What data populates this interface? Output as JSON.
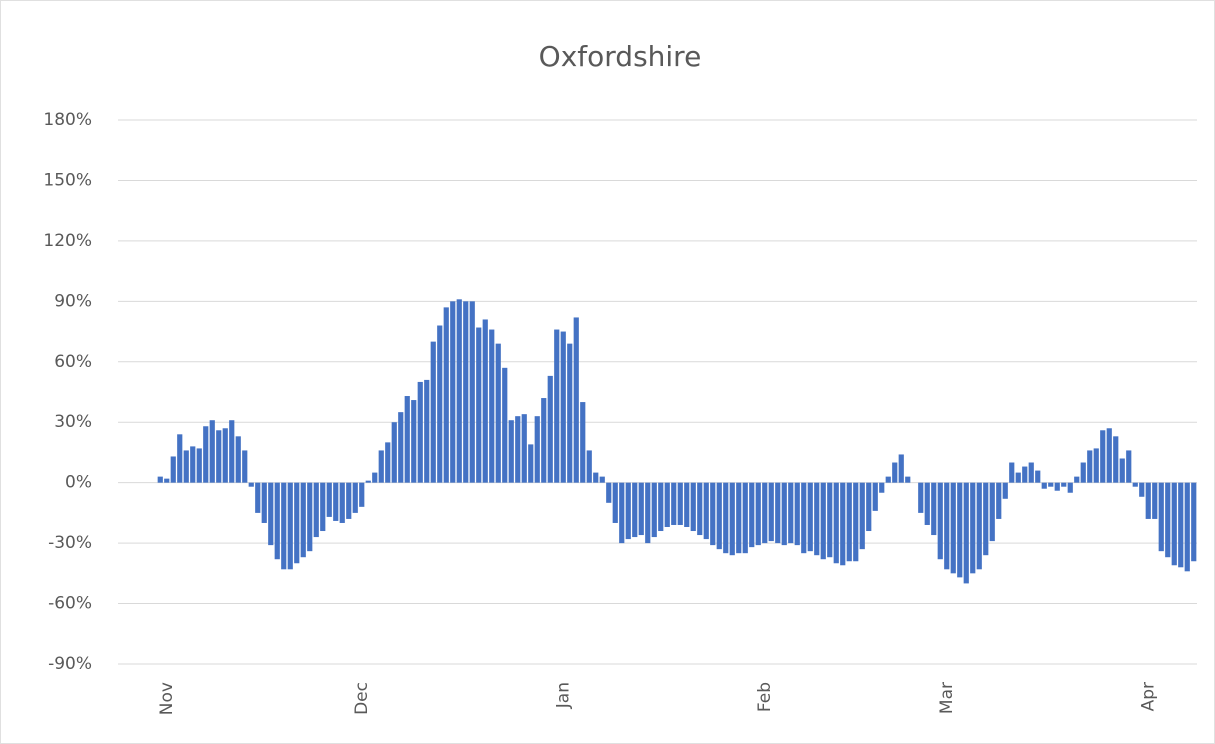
{
  "chart_data": {
    "type": "bar",
    "title": "Oxfordshire",
    "categories": [
      null,
      null,
      null,
      null,
      null,
      null,
      null,
      "Nov",
      null,
      null,
      null,
      null,
      null,
      null,
      null,
      null,
      null,
      null,
      null,
      null,
      null,
      null,
      null,
      null,
      null,
      null,
      null,
      null,
      null,
      null,
      null,
      null,
      null,
      null,
      null,
      null,
      null,
      "Dec",
      null,
      null,
      null,
      null,
      null,
      null,
      null,
      null,
      null,
      null,
      null,
      null,
      null,
      null,
      null,
      null,
      null,
      null,
      null,
      null,
      null,
      null,
      null,
      null,
      null,
      null,
      null,
      null,
      null,
      null,
      "Jan",
      null,
      null,
      null,
      null,
      null,
      null,
      null,
      null,
      null,
      null,
      null,
      null,
      null,
      null,
      null,
      null,
      null,
      null,
      null,
      null,
      null,
      null,
      null,
      null,
      null,
      null,
      null,
      null,
      null,
      null,
      "Feb",
      null,
      null,
      null,
      null,
      null,
      null,
      null,
      null,
      null,
      null,
      null,
      null,
      null,
      null,
      null,
      null,
      null,
      null,
      null,
      null,
      null,
      null,
      null,
      null,
      null,
      null,
      null,
      "Mar",
      null,
      null,
      null,
      null,
      null,
      null,
      null,
      null,
      null,
      null,
      null,
      null,
      null,
      null,
      null,
      null,
      null,
      null,
      null,
      null,
      null,
      null,
      null,
      null,
      null,
      null,
      null,
      null,
      null,
      null,
      "Apr",
      null,
      null,
      null,
      null,
      null,
      null,
      null
    ],
    "values": [
      0,
      0,
      0,
      0,
      0,
      0,
      3,
      2,
      13,
      24,
      16,
      18,
      17,
      28,
      31,
      26,
      27,
      31,
      23,
      16,
      -2,
      -15,
      -20,
      -31,
      -38,
      -43,
      -43,
      -40,
      -37,
      -34,
      -27,
      -24,
      -17,
      -19,
      -20,
      -18,
      -15,
      -12,
      1,
      5,
      16,
      20,
      30,
      35,
      43,
      41,
      50,
      51,
      70,
      78,
      87,
      90,
      91,
      90,
      90,
      77,
      81,
      76,
      69,
      57,
      31,
      33,
      34,
      19,
      33,
      42,
      53,
      76,
      75,
      69,
      82,
      40,
      16,
      5,
      3,
      -10,
      -20,
      -30,
      -28,
      -27,
      -26,
      -30,
      -27,
      -24,
      -22,
      -21,
      -21,
      -22,
      -24,
      -26,
      -28,
      -31,
      -33,
      -35,
      -36,
      -35,
      -35,
      -32,
      -31,
      -30,
      -29,
      -30,
      -31,
      -30,
      -31,
      -35,
      -34,
      -36,
      -38,
      -37,
      -40,
      -41,
      -39,
      -39,
      -33,
      -24,
      -14,
      -5,
      3,
      10,
      14,
      3,
      0,
      -15,
      -21,
      -26,
      -38,
      -43,
      -45,
      -47,
      -50,
      -45,
      -43,
      -36,
      -29,
      -18,
      -8,
      10,
      5,
      8,
      10,
      6,
      -3,
      -2,
      -4,
      -2,
      -5,
      3,
      10,
      16,
      17,
      26,
      27,
      23,
      12,
      16,
      -2,
      -7,
      -18,
      -18,
      -34,
      -37,
      -41,
      -42,
      -44,
      -39
    ],
    "color": "#4472c4",
    "ylim": [
      -90,
      180
    ],
    "yticks": [
      {
        "value": -90,
        "label": "-90%"
      },
      {
        "value": -60,
        "label": "-60%"
      },
      {
        "value": -30,
        "label": "-30%"
      },
      {
        "value": 0,
        "label": "0%"
      },
      {
        "value": 30,
        "label": "30%"
      },
      {
        "value": 60,
        "label": "60%"
      },
      {
        "value": 90,
        "label": "90%"
      },
      {
        "value": 120,
        "label": "120%"
      },
      {
        "value": 150,
        "label": "150%"
      },
      {
        "value": 180,
        "label": "180%"
      }
    ],
    "grid": true
  }
}
